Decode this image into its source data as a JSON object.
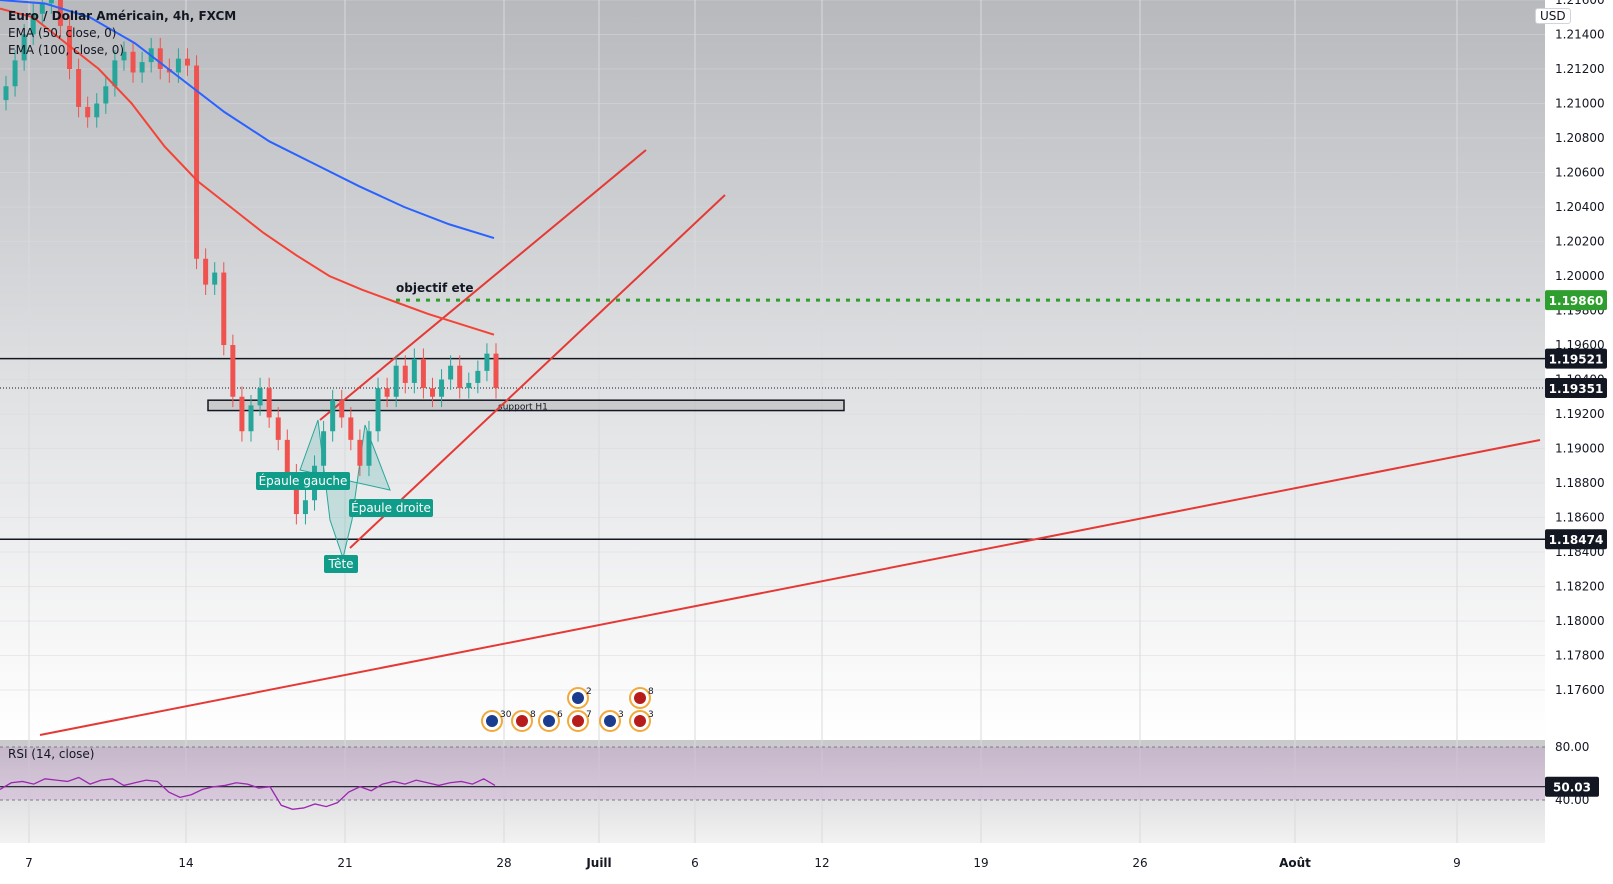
{
  "legend": {
    "title": "Euro / Dollar Américain, 4h, FXCM",
    "ema50": "EMA (50, close, 0)",
    "ema100": "EMA (100, close, 0)",
    "currency": "USD"
  },
  "rsi_legend": "RSI (14, close)",
  "colors": {
    "up": "#26a69a",
    "down": "#ef5350",
    "ema50": "#f44336",
    "ema100": "#2962ff",
    "trend": "#e53935",
    "target": "#2e9e2e",
    "rsi": "#9c27b0",
    "label_bg": "#0f9d8a"
  },
  "chart_data": {
    "type": "candlestick",
    "x_ticks": [
      "7",
      "14",
      "21",
      "28",
      "Juill",
      "6",
      "12",
      "19",
      "26",
      "Août",
      "9"
    ],
    "y_ticks": [
      "1.17600",
      "1.17800",
      "1.18000",
      "1.18200",
      "1.18400",
      "1.18600",
      "1.18800",
      "1.19000",
      "1.19200",
      "1.19400",
      "1.19600",
      "1.19800",
      "1.20000",
      "1.20200",
      "1.20400",
      "1.20600",
      "1.20800",
      "1.21000",
      "1.21200",
      "1.21400",
      "1.21600"
    ],
    "price_labels": [
      {
        "value": "1.19860",
        "kind": "target"
      },
      {
        "value": "1.19521",
        "kind": "level"
      },
      {
        "value": "1.19351",
        "kind": "current"
      },
      {
        "value": "1.18474",
        "kind": "level"
      }
    ],
    "horizontal_levels": [
      1.19521,
      1.18474
    ],
    "current_price": 1.19351,
    "target": {
      "label": "objectif ete",
      "value": 1.1986
    },
    "support_zone": {
      "label": "support H1",
      "low": 1.1922,
      "high": 1.1928
    },
    "pattern_labels": [
      {
        "text": "Épaule gauche"
      },
      {
        "text": "Épaule droite"
      },
      {
        "text": "Tête"
      }
    ],
    "close_series": [
      1.211,
      1.2125,
      1.214,
      1.2152,
      1.2158,
      1.216,
      1.2145,
      1.212,
      1.2098,
      1.2092,
      1.21,
      1.211,
      1.2125,
      1.213,
      1.2118,
      1.2124,
      1.2132,
      1.212,
      1.2118,
      1.2126,
      1.2122,
      1.201,
      1.1995,
      1.2002,
      1.196,
      1.193,
      1.191,
      1.1925,
      1.1935,
      1.1918,
      1.1905,
      1.1885,
      1.1862,
      1.187,
      1.189,
      1.191,
      1.1928,
      1.1918,
      1.1905,
      1.189,
      1.191,
      1.1935,
      1.193,
      1.1948,
      1.1938,
      1.1952,
      1.1935,
      1.193,
      1.194,
      1.1948,
      1.1935,
      1.1938,
      1.1945,
      1.1955,
      1.1935
    ],
    "ema50": [
      1.2155,
      1.215,
      1.2135,
      1.212,
      1.21,
      1.2075,
      1.2055,
      1.204,
      1.2025,
      1.2012,
      1.2,
      1.1992,
      1.1985,
      1.1978,
      1.1972,
      1.1966
    ],
    "ema100": [
      1.216,
      1.2158,
      1.215,
      1.2135,
      1.2115,
      1.2095,
      1.2078,
      1.2065,
      1.2052,
      1.204,
      1.203,
      1.2022
    ],
    "rsi": {
      "levels": [
        "80.00",
        "40.00"
      ],
      "current": "50.03",
      "values": [
        48,
        53,
        54,
        52,
        56,
        55,
        54,
        57,
        52,
        55,
        56,
        51,
        53,
        55,
        54,
        46,
        42,
        44,
        48,
        50,
        51,
        53,
        52,
        49,
        50,
        36,
        33,
        34,
        37,
        35,
        38,
        46,
        50,
        47,
        52,
        54,
        52,
        55,
        53,
        51,
        53,
        54,
        52,
        56,
        51
      ]
    },
    "event_markers": [
      "30",
      "8",
      "6",
      "7",
      "3",
      "3",
      "2",
      "8"
    ],
    "grid": true
  }
}
